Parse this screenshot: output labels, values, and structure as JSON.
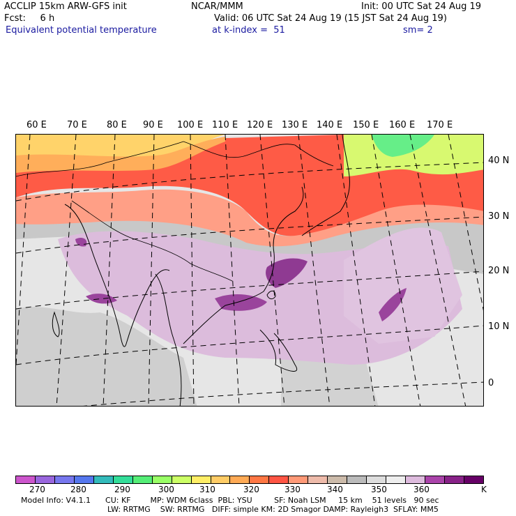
{
  "header": {
    "line1_left": "ACCLIP 15km ARW-GFS init",
    "line1_center": "NCAR/MMM",
    "line1_right": "Init: 00 UTC Sat 24 Aug 19",
    "line2_left": "Fcst:     6 h",
    "line2_right": "Valid: 06 UTC Sat 24 Aug 19 (15 JST Sat 24 Aug 19)",
    "line3_left": "Equivalent potential temperature",
    "line3_center": "at k-index =  51",
    "line3_right": "sm= 2"
  },
  "map": {
    "lon_labels": [
      "60 E",
      "70 E",
      "80 E",
      "90 E",
      "100 E",
      "110 E",
      "120 E",
      "130 E",
      "140 E",
      "150 E",
      "160 E",
      "170 E"
    ],
    "lat_labels": [
      "40 N",
      "30 N",
      "20 N",
      "10 N",
      "0"
    ]
  },
  "colorbar": {
    "colors": [
      "#cc55cc",
      "#9966dd",
      "#7777ee",
      "#5577ee",
      "#33bbbb",
      "#33dd99",
      "#55ee77",
      "#99ff66",
      "#ccff66",
      "#ffee66",
      "#ffcc66",
      "#ffaa55",
      "#ff7744",
      "#ff5544",
      "#ff9977",
      "#eebbaa",
      "#ccbbaa",
      "#bbbbbb",
      "#dddddd",
      "#eeeeee",
      "#ddbbdd",
      "#aa44aa",
      "#882288",
      "#660066"
    ],
    "ticks": [
      "270",
      "280",
      "290",
      "300",
      "310",
      "320",
      "330",
      "340",
      "350",
      "360"
    ],
    "unit": "K"
  },
  "model_info": {
    "line1": "Model Info: V4.1.1      CU: KF        MP: WDM 6class  PBL: YSU         SF: Noah LSM     15 km    51 levels   90 sec",
    "line2": "LW: RRTMG    SW: RRTMG   DIFF: simple KM: 2D Smagor DAMP: Rayleigh3  SFLAY: MM5"
  }
}
